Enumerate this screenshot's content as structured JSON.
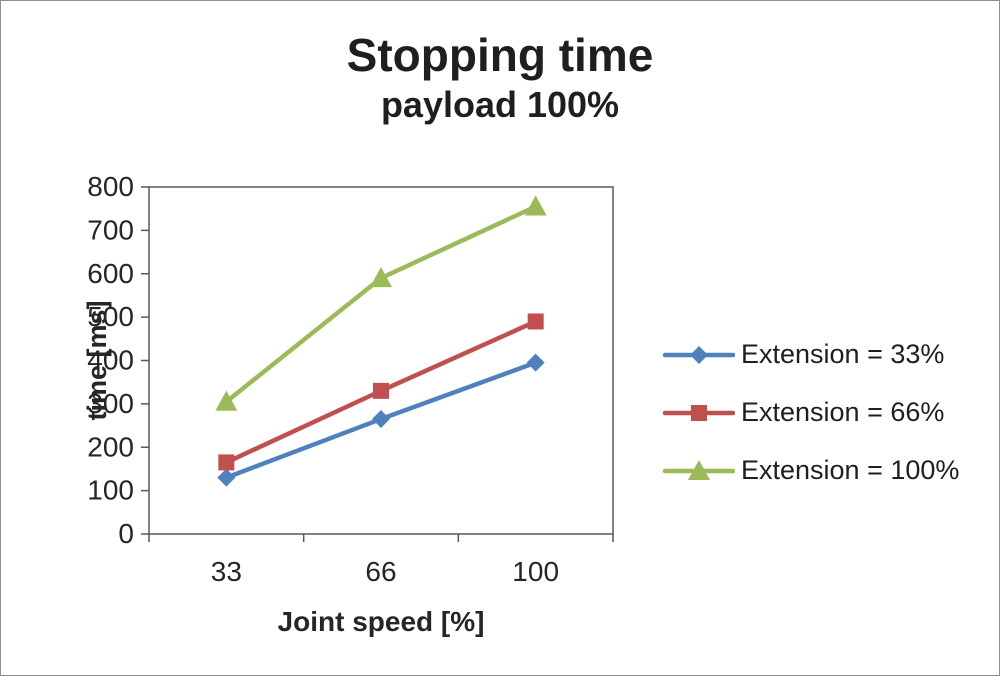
{
  "title": "Stopping time",
  "subtitle": "payload 100%",
  "chart_data": {
    "type": "line",
    "title": "Stopping time",
    "subtitle": "payload 100%",
    "categories": [
      "33",
      "66",
      "100"
    ],
    "xlabel": "Joint speed [%]",
    "ylabel": "time [ms]",
    "ylim": [
      0,
      800
    ],
    "ytick_step": 100,
    "grid": false,
    "legend_position": "right",
    "series": [
      {
        "name": "Extension = 33%",
        "marker": "diamond",
        "color": "#4F81BD",
        "values": [
          130,
          265,
          395
        ]
      },
      {
        "name": "Extension = 66%",
        "marker": "square",
        "color": "#C0504D",
        "values": [
          165,
          330,
          490
        ]
      },
      {
        "name": "Extension = 100%",
        "marker": "triangle",
        "color": "#9BBB59",
        "values": [
          305,
          590,
          755
        ]
      }
    ]
  }
}
